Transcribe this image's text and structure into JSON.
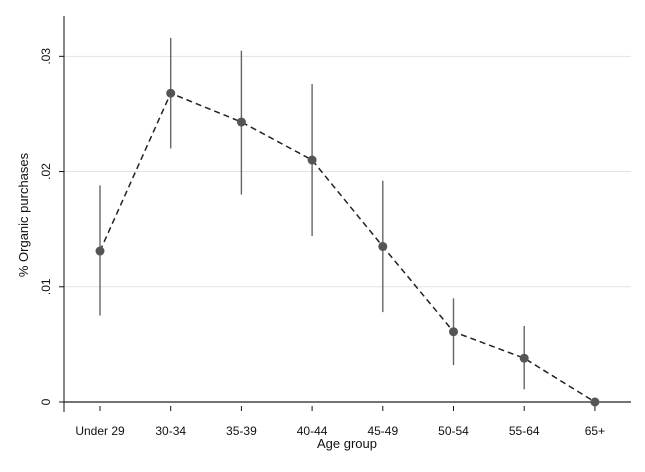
{
  "chart_data": {
    "type": "line",
    "title": "",
    "xlabel": "Age group",
    "ylabel": "% Organic purchases",
    "categories": [
      "Under 29",
      "30-34",
      "35-39",
      "40-44",
      "45-49",
      "50-54",
      "55-64",
      "65+"
    ],
    "ylim": [
      0,
      0.03
    ],
    "yticks": [
      0,
      0.01,
      0.02,
      0.03
    ],
    "ytick_labels": [
      "0",
      ".01",
      ".02",
      ".03"
    ],
    "grid": true,
    "series": [
      {
        "values": [
          0.0131,
          0.0268,
          0.0243,
          0.021,
          0.0135,
          0.0061,
          0.0038,
          0.0
        ],
        "ci_low": [
          0.0075,
          0.022,
          0.018,
          0.0144,
          0.0078,
          0.0032,
          0.0011,
          0.0
        ],
        "ci_high": [
          0.0188,
          0.0316,
          0.0305,
          0.0276,
          0.0192,
          0.009,
          0.0066,
          0.0
        ],
        "line_style": "dashed",
        "marker_color": "#555555",
        "line_color": "#222222",
        "error_bar_color": "#666666"
      }
    ]
  },
  "colors": {
    "grid": "#e2e2e2",
    "axis": "#111111",
    "zero_line": "#222222"
  }
}
